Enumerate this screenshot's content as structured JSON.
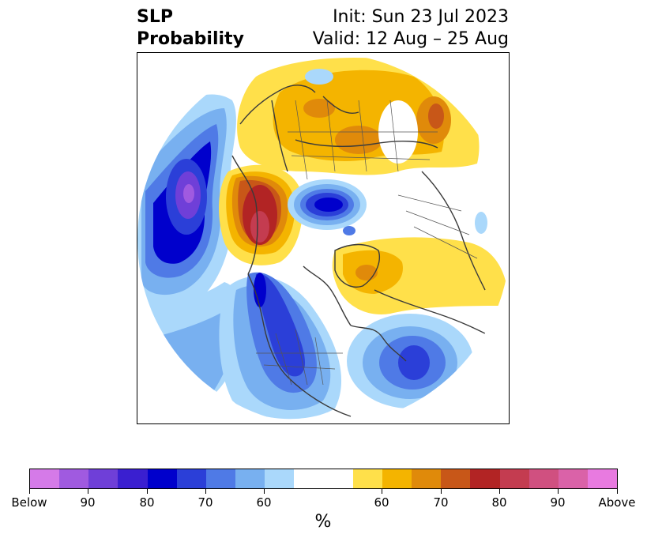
{
  "title": {
    "left_line1": "SLP",
    "left_line2": "Probability",
    "right_line1": "Init: Sun 23 Jul 2023",
    "right_line2": "Valid: 12 Aug – 25 Aug"
  },
  "colorbar": {
    "unit": "%",
    "colors": [
      "#d57ae8",
      "#a05ae0",
      "#6f3fd8",
      "#3a1fd0",
      "#0000cc",
      "#2b3fd8",
      "#4f7ae6",
      "#78b0f0",
      "#aad8fb",
      "#ffffff",
      "#ffffff",
      "#ffe04a",
      "#f4b400",
      "#e08a0a",
      "#c85718",
      "#b22424",
      "#c43c50",
      "#d05080",
      "#da62a8",
      "#e87ae0"
    ],
    "ticks": [
      "Below",
      "90",
      "80",
      "70",
      "60",
      "60",
      "70",
      "80",
      "90",
      "Above"
    ]
  },
  "map": {
    "projection": "north-polar-stereographic",
    "field": "SLP probability anomaly",
    "palette": {
      "light_blue": "#aad8fb",
      "mid_blue": "#78b0f0",
      "blue": "#4f7ae6",
      "deep_blue": "#2b3fd8",
      "navy": "#0000cc",
      "purple": "#6f3fd8",
      "violet": "#a05ae0",
      "yellow": "#ffe04a",
      "gold": "#f4b400",
      "orange": "#e08a0a",
      "dark_orange": "#c85718",
      "red": "#b22424",
      "crimson": "#c43c50",
      "land_line": "#3a3a3a"
    }
  }
}
